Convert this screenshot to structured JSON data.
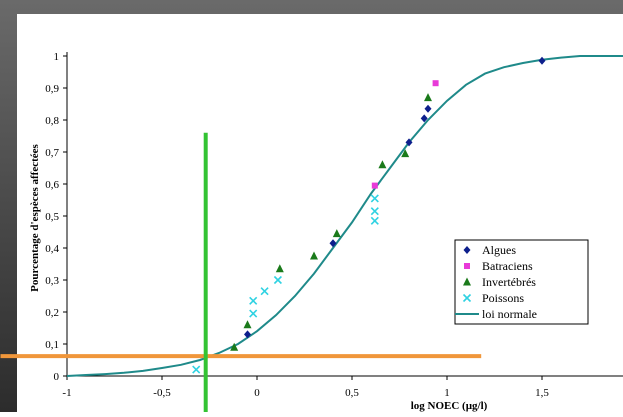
{
  "chart_data": {
    "type": "scatter",
    "title": "",
    "xlabel": "log NOEC (µg/l)",
    "ylabel": "Pourcentage d'espèces affectées",
    "xlim": [
      -1,
      2
    ],
    "ylim": [
      0,
      1
    ],
    "x_ticks": [
      "-1",
      "-0,5",
      "0",
      "0,5",
      "1",
      "1,5"
    ],
    "y_ticks": [
      "0",
      "0,1",
      "0,2",
      "0,3",
      "0,4",
      "0,5",
      "0,6",
      "0,7",
      "0,8",
      "0,9",
      "1"
    ],
    "legend_position": "right",
    "series": [
      {
        "name": "Algues",
        "marker": "diamond",
        "color": "#0d1f8c",
        "points": [
          [
            -0.05,
            0.13
          ],
          [
            0.4,
            0.415
          ],
          [
            0.8,
            0.73
          ],
          [
            0.88,
            0.805
          ],
          [
            0.9,
            0.835
          ],
          [
            1.5,
            0.985
          ]
        ]
      },
      {
        "name": "Batraciens",
        "marker": "square",
        "color": "#e83ad8",
        "points": [
          [
            0.62,
            0.595
          ],
          [
            0.94,
            0.915
          ]
        ]
      },
      {
        "name": "Invertébrés",
        "marker": "triangle",
        "color": "#1a7a1a",
        "points": [
          [
            -0.12,
            0.09
          ],
          [
            -0.05,
            0.16
          ],
          [
            0.12,
            0.335
          ],
          [
            0.3,
            0.375
          ],
          [
            0.42,
            0.445
          ],
          [
            0.66,
            0.66
          ],
          [
            0.78,
            0.695
          ],
          [
            0.9,
            0.87
          ]
        ]
      },
      {
        "name": "Poissons",
        "marker": "x",
        "color": "#2fd2e2",
        "points": [
          [
            -0.32,
            0.02
          ],
          [
            -0.02,
            0.195
          ],
          [
            -0.02,
            0.235
          ],
          [
            0.04,
            0.265
          ],
          [
            0.11,
            0.3
          ],
          [
            0.62,
            0.485
          ],
          [
            0.62,
            0.515
          ],
          [
            0.62,
            0.555
          ]
        ]
      },
      {
        "name": "loi normale",
        "marker": "line",
        "color": "#1f8a8a",
        "points": [
          [
            -1.0,
            0.0
          ],
          [
            -0.9,
            0.003
          ],
          [
            -0.8,
            0.006
          ],
          [
            -0.7,
            0.01
          ],
          [
            -0.6,
            0.016
          ],
          [
            -0.5,
            0.025
          ],
          [
            -0.4,
            0.035
          ],
          [
            -0.3,
            0.05
          ],
          [
            -0.2,
            0.072
          ],
          [
            -0.1,
            0.1
          ],
          [
            0.0,
            0.14
          ],
          [
            0.1,
            0.19
          ],
          [
            0.2,
            0.25
          ],
          [
            0.3,
            0.32
          ],
          [
            0.4,
            0.4
          ],
          [
            0.5,
            0.48
          ],
          [
            0.6,
            0.57
          ],
          [
            0.7,
            0.65
          ],
          [
            0.8,
            0.73
          ],
          [
            0.9,
            0.8
          ],
          [
            1.0,
            0.86
          ],
          [
            1.1,
            0.91
          ],
          [
            1.2,
            0.945
          ],
          [
            1.3,
            0.965
          ],
          [
            1.4,
            0.978
          ],
          [
            1.5,
            0.988
          ],
          [
            1.6,
            0.995
          ],
          [
            1.7,
            1.0
          ],
          [
            2.0,
            1.0
          ]
        ]
      }
    ],
    "annotations": {
      "vertical_line": {
        "x": -0.27,
        "y_top": 0.76,
        "color": "#33c333"
      },
      "horizontal_line": {
        "y": 0.062,
        "x_start": -1.35,
        "x_end": 1.18,
        "color": "#f0963a"
      }
    }
  },
  "colors": {
    "frame_dark": "#3a3a3a",
    "plot_background": "#ffffff",
    "axis": "#000000"
  }
}
